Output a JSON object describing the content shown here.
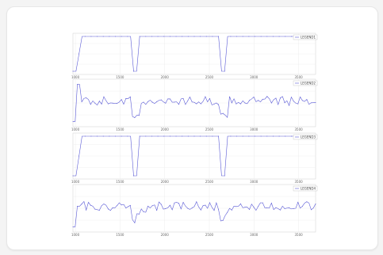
{
  "app": {
    "card_bg": "#ffffff",
    "page_bg": "#f4f4f4"
  },
  "chart_data": [
    {
      "type": "line",
      "series": [
        {
          "name": "LEGEND1",
          "color": "#5a5ad6"
        }
      ],
      "x_ticks": [
        "1000",
        "1500",
        "2000",
        "2500",
        "3000",
        "3500"
      ],
      "shape": "square",
      "grid": true,
      "legend": "top-right"
    },
    {
      "type": "line",
      "series": [
        {
          "name": "LEGEND2",
          "color": "#5a5ad6"
        }
      ],
      "x_ticks": [
        "1000",
        "1500",
        "2000",
        "2500",
        "3000",
        "3500"
      ],
      "shape": "noisy",
      "grid": true,
      "legend": "top-right"
    },
    {
      "type": "line",
      "series": [
        {
          "name": "LEGEND3",
          "color": "#5a5ad6"
        }
      ],
      "x_ticks": [
        "1000",
        "1500",
        "2000",
        "2500",
        "3000",
        "3500"
      ],
      "shape": "square",
      "grid": true,
      "legend": "top-right"
    },
    {
      "type": "line",
      "series": [
        {
          "name": "LEGEND4",
          "color": "#5a5ad6"
        }
      ],
      "x_ticks": [
        "1000",
        "1500",
        "2000",
        "2500",
        "3000",
        "3500"
      ],
      "shape": "noisy2",
      "grid": true,
      "legend": "top-right"
    }
  ]
}
